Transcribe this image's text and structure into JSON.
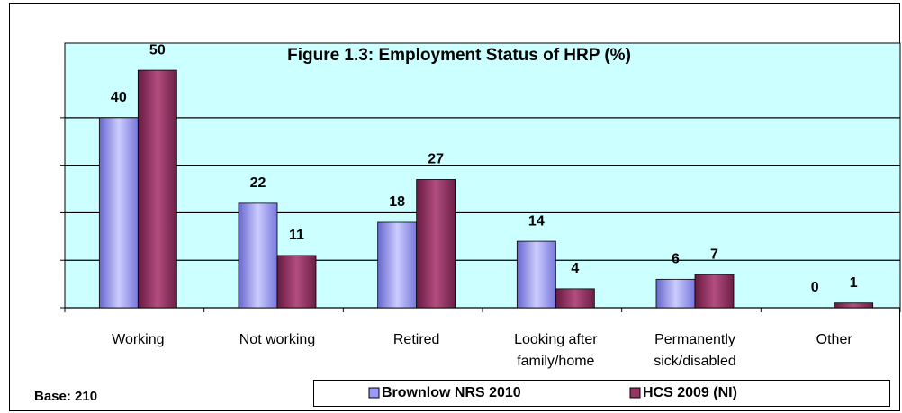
{
  "chart_data": {
    "type": "bar",
    "title": "Figure 1.3: Employment Status of HRP (%)",
    "note": "Base:  210",
    "categories": [
      "Working",
      "Not working",
      "Retired",
      "Looking after\nfamily/home",
      "Permanently\nsick/disabled",
      "Other"
    ],
    "series": [
      {
        "name": "Brownlow NRS 2010",
        "color": "#9999ff",
        "values": [
          40,
          22,
          18,
          14,
          6,
          0
        ]
      },
      {
        "name": "HCS 2009 (NI)",
        "color": "#993366",
        "values": [
          50,
          11,
          27,
          4,
          7,
          1
        ]
      }
    ],
    "ylim": [
      0,
      55.7
    ],
    "yticks": [
      0,
      10,
      20,
      30,
      40
    ],
    "grid": true,
    "background": "#ccffff"
  }
}
